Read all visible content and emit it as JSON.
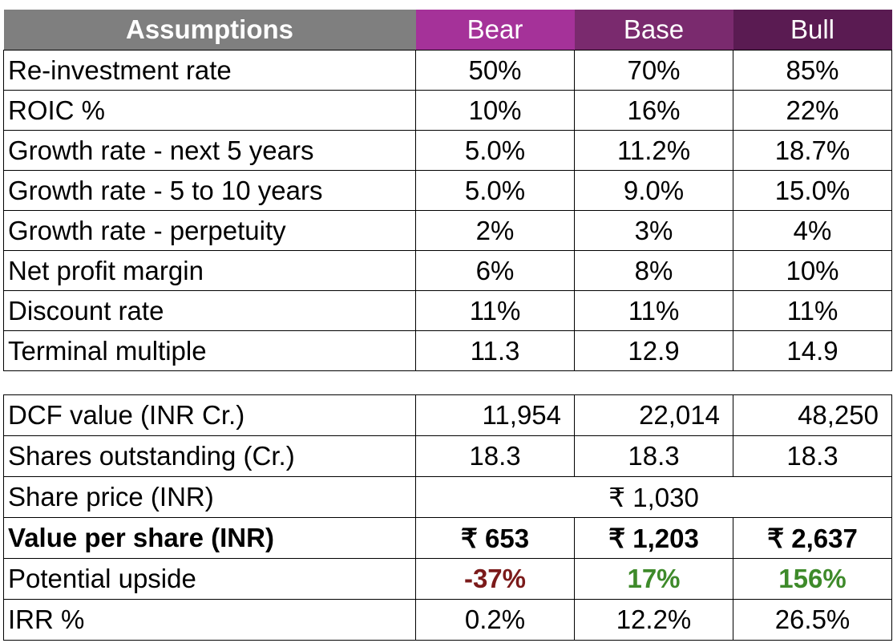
{
  "header": {
    "label": "Assumptions",
    "scenarios": [
      "Bear",
      "Base",
      "Bull"
    ]
  },
  "assumptions": [
    {
      "label": "Re-investment rate",
      "values": [
        "50%",
        "70%",
        "85%"
      ]
    },
    {
      "label": "ROIC %",
      "values": [
        "10%",
        "16%",
        "22%"
      ]
    },
    {
      "label": "Growth rate - next 5 years",
      "values": [
        "5.0%",
        "11.2%",
        "18.7%"
      ]
    },
    {
      "label": "Growth rate - 5 to 10 years",
      "values": [
        "5.0%",
        "9.0%",
        "15.0%"
      ]
    },
    {
      "label": "Growth rate - perpetuity",
      "values": [
        "2%",
        "3%",
        "4%"
      ]
    },
    {
      "label": "Net profit margin",
      "values": [
        "6%",
        "8%",
        "10%"
      ]
    },
    {
      "label": "Discount rate",
      "values": [
        "11%",
        "11%",
        "11%"
      ]
    },
    {
      "label": "Terminal multiple",
      "values": [
        "11.3",
        "12.9",
        "14.9"
      ]
    }
  ],
  "valuation": {
    "dcf": {
      "label": "DCF value (INR Cr.)",
      "values": [
        "11,954",
        "22,014",
        "48,250"
      ]
    },
    "shares": {
      "label": "Shares outstanding (Cr.)",
      "values": [
        "18.3",
        "18.3",
        "18.3"
      ]
    },
    "price": {
      "label": "Share price (INR)",
      "value": "₹ 1,030"
    },
    "vps": {
      "label": "Value per share (INR)",
      "values": [
        "₹ 653",
        "₹ 1,203",
        "₹ 2,637"
      ]
    },
    "upside": {
      "label": "Potential upside",
      "values": [
        "-37%",
        "17%",
        "156%"
      ]
    },
    "irr": {
      "label": "IRR %",
      "values": [
        "0.2%",
        "12.2%",
        "26.5%"
      ]
    }
  },
  "colors": {
    "header_label_bg": "#7f7f7f",
    "bear_bg": "#a53299",
    "base_bg": "#7a2a6e",
    "bull_bg": "#5a1b52",
    "negative": "#7b1a1a",
    "positive": "#3e8a2a"
  }
}
